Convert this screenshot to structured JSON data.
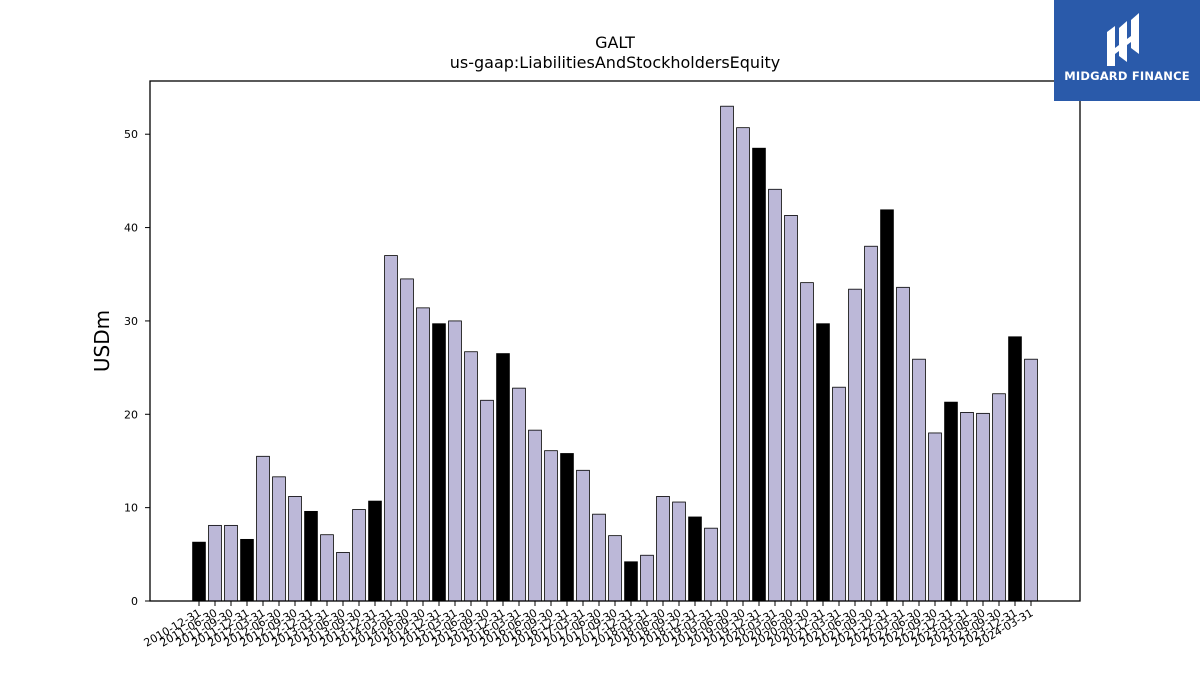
{
  "chart_data": {
    "type": "bar",
    "title": "GALT",
    "subtitle": "us-gaap:LiabilitiesAndStockholdersEquity",
    "xlabel": "",
    "ylabel": "USDm",
    "ylim": [
      0,
      55.7
    ],
    "yticks": [
      0,
      10,
      20,
      30,
      40,
      50
    ],
    "grid": false,
    "colors": {
      "quarter": "#bcb8d8",
      "year_end": "#000000",
      "edge": "#000000"
    },
    "categories": [
      "2010-12-31",
      "2011-06-30",
      "2011-09-30",
      "2011-12-31",
      "2012-03-31",
      "2012-06-30",
      "2012-09-30",
      "2012-12-31",
      "2013-03-31",
      "2013-06-30",
      "2013-09-30",
      "2013-12-31",
      "2014-03-31",
      "2014-06-30",
      "2014-09-30",
      "2014-12-31",
      "2015-03-31",
      "2015-06-30",
      "2015-09-30",
      "2015-12-31",
      "2016-03-31",
      "2016-06-30",
      "2016-09-30",
      "2016-12-31",
      "2017-03-31",
      "2017-06-30",
      "2017-09-30",
      "2017-12-31",
      "2018-03-31",
      "2018-06-30",
      "2018-09-30",
      "2018-12-31",
      "2019-03-31",
      "2019-06-30",
      "2019-09-30",
      "2019-12-31",
      "2020-03-31",
      "2020-06-30",
      "2020-09-30",
      "2020-12-31",
      "2021-03-31",
      "2021-06-30",
      "2021-09-30",
      "2021-12-31",
      "2022-03-31",
      "2022-06-30",
      "2022-09-30",
      "2022-12-31",
      "2023-03-31",
      "2023-06-30",
      "2023-09-30",
      "2023-12-31",
      "2024-03-31"
    ],
    "values": [
      6.3,
      8.1,
      8.1,
      6.6,
      15.5,
      13.3,
      11.2,
      9.6,
      7.1,
      5.2,
      9.8,
      10.7,
      37.0,
      34.5,
      31.4,
      29.7,
      30.0,
      26.7,
      21.5,
      26.5,
      22.8,
      18.3,
      16.1,
      15.8,
      14.0,
      9.3,
      7.0,
      4.2,
      4.9,
      11.2,
      10.6,
      9.0,
      7.8,
      53.0,
      50.7,
      48.5,
      44.1,
      41.3,
      34.1,
      29.7,
      22.9,
      33.4,
      38.0,
      41.9,
      33.6,
      25.9,
      18.0,
      21.3,
      20.2,
      20.1,
      22.2,
      28.3,
      25.9
    ],
    "year_end": [
      true,
      false,
      false,
      true,
      false,
      false,
      false,
      true,
      false,
      false,
      false,
      true,
      false,
      false,
      false,
      true,
      false,
      false,
      false,
      true,
      false,
      false,
      false,
      true,
      false,
      false,
      false,
      true,
      false,
      false,
      false,
      true,
      false,
      false,
      false,
      true,
      false,
      false,
      false,
      true,
      false,
      false,
      false,
      true,
      false,
      false,
      false,
      true,
      false,
      false,
      false,
      true,
      false
    ]
  },
  "logo": {
    "text": "MIDGARD FINANCE"
  }
}
